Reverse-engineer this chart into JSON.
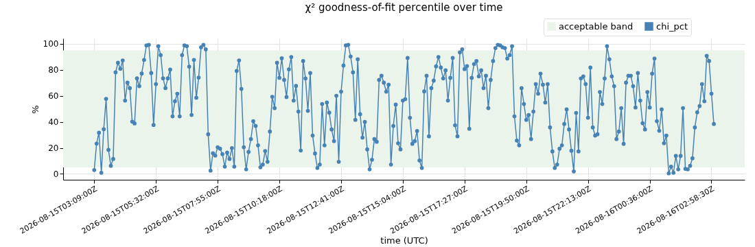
{
  "chart_data": {
    "type": "line",
    "title": "χ² goodness-of-fit percentile over time",
    "xlabel": "time (UTC)",
    "ylabel": "%",
    "x": [
      "2026-08-15T03:09",
      "2026-08-15T03:14:30",
      "2026-08-15T03:20",
      "2026-08-15T03:25:30",
      "2026-08-15T03:31",
      "2026-08-15T03:36:30",
      "2026-08-15T03:42",
      "2026-08-15T03:47:30",
      "2026-08-15T03:53",
      "2026-08-15T03:58:30",
      "2026-08-15T04:04",
      "2026-08-15T04:09:30",
      "2026-08-15T04:15",
      "2026-08-15T04:20:30",
      "2026-08-15T04:26",
      "2026-08-15T04:31:30",
      "2026-08-15T04:37",
      "2026-08-15T04:42:30",
      "2026-08-15T04:48",
      "2026-08-15T04:53:30",
      "2026-08-15T04:59",
      "2026-08-15T05:04:30",
      "2026-08-15T05:10",
      "2026-08-15T05:15:30",
      "2026-08-15T05:21",
      "2026-08-15T05:26:30",
      "2026-08-15T05:32",
      "2026-08-15T05:37:30",
      "2026-08-15T05:43",
      "2026-08-15T05:48:30",
      "2026-08-15T05:54",
      "2026-08-15T05:59:30",
      "2026-08-15T06:05",
      "2026-08-15T06:10:30",
      "2026-08-15T06:16",
      "2026-08-15T06:21:30",
      "2026-08-15T06:27",
      "2026-08-15T06:32:30",
      "2026-08-15T06:38",
      "2026-08-15T06:43:30",
      "2026-08-15T06:49",
      "2026-08-15T06:54:30",
      "2026-08-15T07:00",
      "2026-08-15T07:05:30",
      "2026-08-15T07:11",
      "2026-08-15T07:16:30",
      "2026-08-15T07:22",
      "2026-08-15T07:27:30",
      "2026-08-15T07:33",
      "2026-08-15T07:38:30",
      "2026-08-15T07:44",
      "2026-08-15T07:49:30",
      "2026-08-15T07:55",
      "2026-08-15T08:00:30",
      "2026-08-15T08:06",
      "2026-08-15T08:11:30",
      "2026-08-15T08:17",
      "2026-08-15T08:22:30",
      "2026-08-15T08:28",
      "2026-08-15T08:33:30",
      "2026-08-15T08:39",
      "2026-08-15T08:44:30",
      "2026-08-15T08:50",
      "2026-08-15T08:55:30",
      "2026-08-15T09:01",
      "2026-08-15T09:06:30",
      "2026-08-15T09:12",
      "2026-08-15T09:17:30",
      "2026-08-15T09:23",
      "2026-08-15T09:28:30",
      "2026-08-15T09:34",
      "2026-08-15T09:39:30",
      "2026-08-15T09:45",
      "2026-08-15T09:50:30",
      "2026-08-15T09:56",
      "2026-08-15T10:01:30",
      "2026-08-15T10:07",
      "2026-08-15T10:12:30",
      "2026-08-15T10:18",
      "2026-08-15T10:23:30",
      "2026-08-15T10:29",
      "2026-08-15T10:34:30",
      "2026-08-15T10:40",
      "2026-08-15T10:45:30",
      "2026-08-15T10:51",
      "2026-08-15T10:56:30",
      "2026-08-15T11:02",
      "2026-08-15T11:07:30",
      "2026-08-15T11:13",
      "2026-08-15T11:18:30",
      "2026-08-15T11:24",
      "2026-08-15T11:29:30",
      "2026-08-15T11:35",
      "2026-08-15T11:40:30",
      "2026-08-15T11:46",
      "2026-08-15T11:51:30",
      "2026-08-15T11:57",
      "2026-08-15T12:02:30",
      "2026-08-15T12:08",
      "2026-08-15T12:13:30",
      "2026-08-15T12:19",
      "2026-08-15T12:24:30",
      "2026-08-15T12:30",
      "2026-08-15T12:35:30",
      "2026-08-15T12:41",
      "2026-08-15T12:46:30",
      "2026-08-15T12:52",
      "2026-08-15T12:57:30",
      "2026-08-15T13:03",
      "2026-08-15T13:08:30",
      "2026-08-15T13:14",
      "2026-08-15T13:19:30",
      "2026-08-15T13:25",
      "2026-08-15T13:30:30",
      "2026-08-15T13:36",
      "2026-08-15T13:41:30",
      "2026-08-15T13:47",
      "2026-08-15T13:52:30",
      "2026-08-15T13:58",
      "2026-08-15T14:03:30",
      "2026-08-15T14:09",
      "2026-08-15T14:14:30",
      "2026-08-15T14:20",
      "2026-08-15T14:25:30",
      "2026-08-15T14:31",
      "2026-08-15T14:36:30",
      "2026-08-15T14:42",
      "2026-08-15T14:47:30",
      "2026-08-15T14:53",
      "2026-08-15T14:58:30",
      "2026-08-15T15:04",
      "2026-08-15T15:09:30",
      "2026-08-15T15:15",
      "2026-08-15T15:20:30",
      "2026-08-15T15:26",
      "2026-08-15T15:31:30",
      "2026-08-15T15:37",
      "2026-08-15T15:42:30",
      "2026-08-15T15:48",
      "2026-08-15T15:53:30",
      "2026-08-15T15:59",
      "2026-08-15T16:04:30",
      "2026-08-15T16:10",
      "2026-08-15T16:15:30",
      "2026-08-15T16:21",
      "2026-08-15T16:26:30",
      "2026-08-15T16:32",
      "2026-08-15T16:37:30",
      "2026-08-15T16:43",
      "2026-08-15T16:48:30",
      "2026-08-15T16:54",
      "2026-08-15T16:59:30",
      "2026-08-15T17:05",
      "2026-08-15T17:10:30",
      "2026-08-15T17:16",
      "2026-08-15T17:21:30",
      "2026-08-15T17:27",
      "2026-08-15T17:32:30",
      "2026-08-15T17:38",
      "2026-08-15T17:43:30",
      "2026-08-15T17:49",
      "2026-08-15T17:54:30",
      "2026-08-15T18:00",
      "2026-08-15T18:05:30",
      "2026-08-15T18:11",
      "2026-08-15T18:16:30",
      "2026-08-15T18:22",
      "2026-08-15T18:27:30",
      "2026-08-15T18:33",
      "2026-08-15T18:38:30",
      "2026-08-15T18:44",
      "2026-08-15T18:49:30",
      "2026-08-15T18:55",
      "2026-08-15T19:00:30",
      "2026-08-15T19:06",
      "2026-08-15T19:11:30",
      "2026-08-15T19:17",
      "2026-08-15T19:22:30",
      "2026-08-15T19:28",
      "2026-08-15T19:33:30",
      "2026-08-15T19:39",
      "2026-08-15T19:44:30",
      "2026-08-15T19:50",
      "2026-08-15T19:55:30",
      "2026-08-15T20:01",
      "2026-08-15T20:06:30",
      "2026-08-15T20:12",
      "2026-08-15T20:17:30",
      "2026-08-15T20:23",
      "2026-08-15T20:28:30",
      "2026-08-15T20:34",
      "2026-08-15T20:39:30",
      "2026-08-15T20:45",
      "2026-08-15T20:50:30",
      "2026-08-15T20:56",
      "2026-08-15T21:01:30",
      "2026-08-15T21:07",
      "2026-08-15T21:12:30",
      "2026-08-15T21:18",
      "2026-08-15T21:23:30",
      "2026-08-15T21:29",
      "2026-08-15T21:34:30",
      "2026-08-15T21:40",
      "2026-08-15T21:45:30",
      "2026-08-15T21:51",
      "2026-08-15T21:56:30",
      "2026-08-15T22:02",
      "2026-08-15T22:07:30",
      "2026-08-15T22:13",
      "2026-08-15T22:18:30",
      "2026-08-15T22:24",
      "2026-08-15T22:29:30",
      "2026-08-15T22:35",
      "2026-08-15T22:40:30",
      "2026-08-15T22:46",
      "2026-08-15T22:51:30",
      "2026-08-15T22:57",
      "2026-08-15T23:02:30",
      "2026-08-15T23:08",
      "2026-08-15T23:13:30",
      "2026-08-15T23:19",
      "2026-08-15T23:24:30",
      "2026-08-15T23:30",
      "2026-08-15T23:35:30",
      "2026-08-15T23:41",
      "2026-08-15T23:46:30",
      "2026-08-15T23:52",
      "2026-08-15T23:57:30",
      "2026-08-16T00:03",
      "2026-08-16T00:08:30",
      "2026-08-16T00:14",
      "2026-08-16T00:19:30",
      "2026-08-16T00:25",
      "2026-08-16T00:30:30",
      "2026-08-16T00:36",
      "2026-08-16T00:41:30",
      "2026-08-16T00:47",
      "2026-08-16T00:52:30",
      "2026-08-16T00:58",
      "2026-08-16T01:03:30",
      "2026-08-16T01:09",
      "2026-08-16T01:14:30",
      "2026-08-16T01:20",
      "2026-08-16T01:25:30",
      "2026-08-16T01:31",
      "2026-08-16T01:36:30",
      "2026-08-16T01:42",
      "2026-08-16T01:47:30",
      "2026-08-16T01:53",
      "2026-08-16T01:58:30",
      "2026-08-16T02:04",
      "2026-08-16T02:09:30",
      "2026-08-16T02:15",
      "2026-08-16T02:20:30",
      "2026-08-16T02:26",
      "2026-08-16T02:31:30",
      "2026-08-16T02:37",
      "2026-08-16T02:42:30",
      "2026-08-16T02:48",
      "2026-08-16T02:53:30",
      "2026-08-16T02:59",
      "2026-08-16T03:04:30"
    ],
    "series": [
      {
        "name": "chi_pct",
        "color": "#4682b4",
        "values": [
          3.0,
          23.3,
          31.7,
          0.9,
          34.4,
          57.7,
          18.5,
          6.2,
          11.5,
          78.1,
          85.5,
          80.8,
          87.3,
          56.4,
          70.2,
          66.0,
          40.2,
          38.8,
          73.5,
          67.5,
          77.2,
          87.7,
          98.8,
          99.3,
          77.6,
          37.6,
          69.1,
          98.2,
          91.4,
          73.5,
          66.0,
          73.5,
          80.2,
          44.3,
          55.9,
          61.7,
          44.3,
          91.4,
          98.8,
          98.2,
          82.5,
          45.3,
          87.7,
          58.6,
          74.1,
          97.4,
          99.3,
          95.8,
          30.5,
          2.5,
          15.9,
          14.1,
          20.5,
          19.4,
          15.2,
          5.6,
          16.4,
          11.5,
          19.9,
          5.6,
          79.2,
          87.3,
          65.4,
          20.5,
          3.5,
          16.9,
          26.8,
          40.6,
          36.9,
          22.0,
          5.1,
          7.2,
          17.6,
          9.3,
          32.6,
          59.3,
          50.6,
          85.5,
          73.9,
          88.9,
          72.3,
          59.1,
          80.4,
          89.9,
          56.4,
          67.7,
          48.0,
          18.0,
          86.8,
          73.4,
          48.5,
          77.6,
          29.5,
          15.7,
          4.6,
          7.2,
          53.8,
          22.0,
          54.9,
          47.1,
          34.2,
          25.2,
          60.1,
          9.3,
          63.3,
          83.4,
          98.8,
          99.3,
          90.3,
          78.1,
          41.6,
          88.2,
          45.9,
          27.9,
          40.0,
          18.9,
          3.5,
          10.9,
          26.8,
          24.7,
          72.3,
          75.5,
          70.2,
          63.3,
          68.6,
          7.2,
          36.9,
          53.3,
          23.6,
          18.9,
          56.4,
          57.5,
          89.2,
          43.2,
          23.1,
          25.2,
          33.0,
          10.4,
          4.6,
          63.5,
          75.5,
          28.9,
          66.0,
          71.8,
          82.7,
          89.9,
          81.8,
          73.4,
          79.7,
          56.4,
          73.9,
          89.2,
          37.4,
          28.9,
          93.5,
          95.8,
          80.6,
          82.9,
          34.7,
          73.9,
          84.5,
          86.8,
          75.0,
          79.7,
          66.0,
          75.5,
          50.6,
          72.3,
          86.8,
          96.8,
          99.3,
          98.8,
          97.4,
          96.8,
          88.7,
          91.4,
          98.2,
          44.3,
          25.7,
          22.0,
          66.0,
          53.8,
          41.6,
          45.3,
          26.8,
          48.0,
          69.1,
          61.7,
          77.1,
          68.6,
          54.9,
          69.1,
          35.8,
          17.3,
          4.6,
          7.2,
          19.4,
          22.0,
          38.4,
          49.6,
          34.2,
          17.8,
          1.9,
          46.9,
          17.3,
          73.4,
          75.0,
          69.1,
          43.2,
          81.8,
          35.8,
          29.5,
          30.5,
          63.0,
          53.8,
          73.4,
          98.2,
          88.2,
          75.0,
          67.5,
          26.8,
          32.6,
          50.6,
          23.1,
          70.2,
          75.5,
          75.5,
          67.5,
          51.1,
          77.6,
          56.4,
          39.0,
          34.2,
          63.0,
          51.1,
          77.1,
          88.7,
          40.6,
          33.2,
          49.6,
          23.6,
          29.5,
          0.4,
          5.6,
          0.9,
          13.9,
          3.5,
          13.9,
          50.6,
          3.9,
          3.5,
          6.2,
          12.0,
          35.8,
          47.4,
          52.2,
          69.1,
          55.9,
          90.8,
          86.8,
          61.7,
          38.4
        ]
      }
    ],
    "bands": [
      {
        "axis": "y",
        "from": 5,
        "to": 95,
        "label": "acceptable band",
        "color": "#ebf4ea"
      }
    ],
    "xlim": [
      "2026-08-15T01:57",
      "2026-08-16T04:16"
    ],
    "xticks": [
      {
        "value": "2026-08-15T03:09",
        "label": "2026-08-15T03:09:00Z"
      },
      {
        "value": "2026-08-15T05:32",
        "label": "2026-08-15T05:32:00Z"
      },
      {
        "value": "2026-08-15T07:55",
        "label": "2026-08-15T07:55:00Z"
      },
      {
        "value": "2026-08-15T10:18",
        "label": "2026-08-15T10:18:00Z"
      },
      {
        "value": "2026-08-15T12:41",
        "label": "2026-08-15T12:41:00Z"
      },
      {
        "value": "2026-08-15T15:04",
        "label": "2026-08-15T15:04:00Z"
      },
      {
        "value": "2026-08-15T17:27",
        "label": "2026-08-15T17:27:00Z"
      },
      {
        "value": "2026-08-15T19:50",
        "label": "2026-08-15T19:50:00Z"
      },
      {
        "value": "2026-08-15T22:13",
        "label": "2026-08-15T22:13:00Z"
      },
      {
        "value": "2026-08-16T00:36",
        "label": "2026-08-16T00:36:00Z"
      },
      {
        "value": "2026-08-16T02:58:30",
        "label": "2026-08-16T02:58:30Z"
      }
    ],
    "ylim": [
      -4.5,
      104.2
    ],
    "yticks": [
      0,
      20,
      40,
      60,
      80,
      100
    ],
    "grid": true,
    "legend": "top right",
    "marker": "circle"
  }
}
